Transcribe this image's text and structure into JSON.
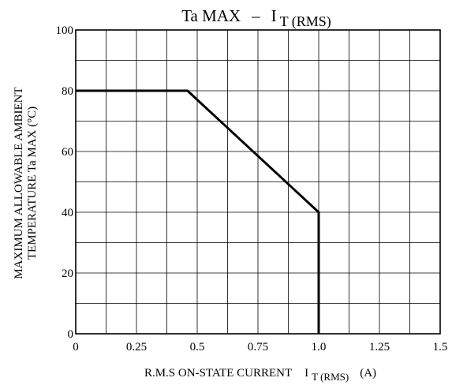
{
  "chart_data": {
    "type": "line",
    "title": {
      "main": "Ta MAX",
      "dash": "–",
      "symbol": "I",
      "subscript": "T (RMS)"
    },
    "xlabel": {
      "text": "R.M.S ON-STATE CURRENT",
      "symbol": "I",
      "subscript": "T (RMS)",
      "unit": "(A)"
    },
    "ylabel": {
      "line1": "MAXIMUM ALLOWABLE AMBIENT",
      "line2": "TEMPERATURE   Ta MAX   (°C)"
    },
    "xlim": [
      0,
      1.5
    ],
    "ylim": [
      0,
      100
    ],
    "x_ticks": [
      0,
      0.25,
      0.5,
      0.75,
      1.0,
      1.25,
      1.5
    ],
    "x_tick_labels": [
      "0",
      "0.25",
      "0.5",
      "0.75",
      "1.0",
      "1.25",
      "1.5"
    ],
    "y_ticks": [
      0,
      20,
      40,
      60,
      80,
      100
    ],
    "y_tick_labels": [
      "0",
      "20",
      "40",
      "60",
      "80",
      "100"
    ],
    "x_grid_step": 0.125,
    "y_grid_step": 10,
    "grid": true,
    "series": [
      {
        "x": [
          0,
          0.46,
          1.0,
          1.0
        ],
        "y": [
          80,
          80,
          40,
          0
        ]
      }
    ]
  }
}
